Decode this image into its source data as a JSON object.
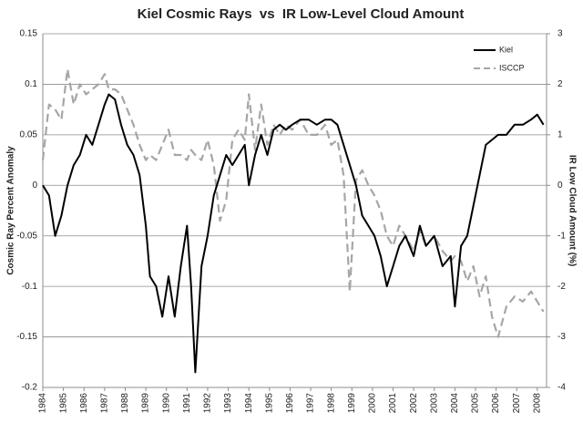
{
  "chart_data": {
    "type": "line",
    "title": "Kiel Cosmic Rays  vs  IR Low-Level Cloud Amount",
    "ylabel": "Cosmic Ray Percent Anomaly",
    "y2label": "IR Low Cloud Amount (%)",
    "x": [
      1984.0,
      1984.3,
      1984.6,
      1984.9,
      1985.2,
      1985.5,
      1985.8,
      1986.1,
      1986.4,
      1986.7,
      1987.0,
      1987.2,
      1987.5,
      1987.8,
      1988.1,
      1988.4,
      1988.7,
      1989.0,
      1989.2,
      1989.5,
      1989.8,
      1990.1,
      1990.4,
      1990.7,
      1991.0,
      1991.2,
      1991.4,
      1991.7,
      1992.0,
      1992.3,
      1992.6,
      1992.9,
      1993.2,
      1993.5,
      1993.8,
      1994.0,
      1994.3,
      1994.6,
      1994.9,
      1995.2,
      1995.5,
      1995.8,
      1996.1,
      1996.5,
      1996.9,
      1997.3,
      1997.7,
      1998.0,
      1998.3,
      1998.6,
      1998.9,
      1999.2,
      1999.5,
      1999.8,
      2000.1,
      2000.4,
      2000.7,
      2001.0,
      2001.3,
      2001.6,
      2002.0,
      2002.3,
      2002.6,
      2003.0,
      2003.4,
      2003.8,
      2004.0,
      2004.3,
      2004.6,
      2004.9,
      2005.2,
      2005.5,
      2005.8,
      2006.1,
      2006.5,
      2006.9,
      2007.3,
      2007.7,
      2008.0,
      2008.3
    ],
    "series": [
      {
        "name": "Kiel",
        "color": "#000000",
        "dashed": false,
        "values": [
          0,
          -0.01,
          -0.05,
          -0.03,
          0,
          0.02,
          0.03,
          0.05,
          0.04,
          0.06,
          0.08,
          0.09,
          0.085,
          0.06,
          0.04,
          0.03,
          0.01,
          -0.04,
          -0.09,
          -0.1,
          -0.13,
          -0.09,
          -0.13,
          -0.08,
          -0.04,
          -0.1,
          -0.185,
          -0.08,
          -0.05,
          -0.01,
          0.01,
          0.03,
          0.02,
          0.03,
          0.04,
          0,
          0.03,
          0.05,
          0.03,
          0.055,
          0.06,
          0.055,
          0.06,
          0.065,
          0.065,
          0.06,
          0.065,
          0.065,
          0.06,
          0.04,
          0.02,
          0,
          -0.03,
          -0.04,
          -0.05,
          -0.07,
          -0.1,
          -0.08,
          -0.06,
          -0.05,
          -0.07,
          -0.04,
          -0.06,
          -0.05,
          -0.08,
          -0.07,
          -0.12,
          -0.06,
          -0.05,
          -0.02,
          0.01,
          0.04,
          0.045,
          0.05,
          0.05,
          0.06,
          0.06,
          0.065,
          0.07,
          0.06
        ]
      },
      {
        "name": "ISCCP",
        "color": "#a6a6a6",
        "dashed": true,
        "axis": "y2",
        "values": [
          0.5,
          1.6,
          1.5,
          1.3,
          2.3,
          1.6,
          2.0,
          1.8,
          1.9,
          2.0,
          2.2,
          1.9,
          1.9,
          1.8,
          1.5,
          1.2,
          0.8,
          0.5,
          0.6,
          0.5,
          0.8,
          1.1,
          0.6,
          0.6,
          0.5,
          0.7,
          0.6,
          0.5,
          0.9,
          0.4,
          -0.7,
          -0.3,
          0.9,
          1.1,
          0.9,
          1.8,
          0.7,
          1.6,
          0.8,
          1.2,
          1.0,
          1.2,
          1.1,
          1.3,
          1.0,
          1.0,
          1.2,
          0.8,
          0.9,
          0.2,
          -2.1,
          0.1,
          0.3,
          0,
          -0.2,
          -0.5,
          -1.0,
          -1.2,
          -0.8,
          -1.0,
          -1.3,
          -0.9,
          -1.2,
          -1.0,
          -1.3,
          -1.5,
          -1.4,
          -1.5,
          -1.9,
          -1.6,
          -2.2,
          -1.8,
          -2.6,
          -3.0,
          -2.4,
          -2.2,
          -2.3,
          -2.1,
          -2.3,
          -2.5
        ]
      }
    ],
    "xlim": [
      1984,
      2008.45
    ],
    "xticks": [
      1984,
      1985,
      1986,
      1987,
      1988,
      1989,
      1990,
      1991,
      1992,
      1993,
      1994,
      1995,
      1996,
      1997,
      1998,
      1999,
      2000,
      2001,
      2002,
      2003,
      2004,
      2005,
      2006,
      2007,
      2008
    ],
    "ylim": [
      -0.2,
      0.15
    ],
    "yticks": [
      -0.2,
      -0.15,
      -0.1,
      -0.05,
      0,
      0.05,
      0.1,
      0.15
    ],
    "y2lim": [
      -4,
      3
    ],
    "y2ticks": [
      -4,
      -3,
      -2,
      -1,
      0,
      1,
      2,
      3
    ],
    "grid": true,
    "legend": "upper right"
  }
}
